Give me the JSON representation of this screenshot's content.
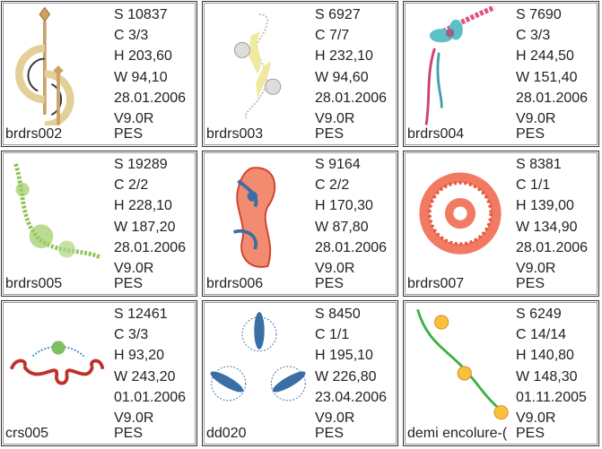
{
  "designs": [
    {
      "name": "brdrs002",
      "stitches": "S  10837",
      "colors": "C  3/3",
      "height": "H  203,60",
      "width": "W 94,10",
      "date": "28.01.2006",
      "version": "V9.0R",
      "format": "PES",
      "art": "art-deco-gold-swirl"
    },
    {
      "name": "brdrs003",
      "stitches": "S  6927",
      "colors": "C  7/7",
      "height": "H  232,10",
      "width": "W 94,60",
      "date": "28.01.2006",
      "version": "V9.0R",
      "format": "PES",
      "art": "yellow-wave-border"
    },
    {
      "name": "brdrs004",
      "stitches": "S  7690",
      "colors": "C  3/3",
      "height": "H  244,50",
      "width": "W 151,40",
      "date": "28.01.2006",
      "version": "V9.0R",
      "format": "PES",
      "art": "pink-teal-floral-spray"
    },
    {
      "name": "brdrs005",
      "stitches": "S  19289",
      "colors": "C  2/2",
      "height": "H  228,10",
      "width": "W 187,20",
      "date": "28.01.2006",
      "version": "V9.0R",
      "format": "PES",
      "art": "green-corner-vine"
    },
    {
      "name": "brdrs006",
      "stitches": "S  9164",
      "colors": "C  2/2",
      "height": "H  170,30",
      "width": "W 87,80",
      "date": "28.01.2006",
      "version": "V9.0R",
      "format": "PES",
      "art": "red-blue-paisley"
    },
    {
      "name": "brdrs007",
      "stitches": "S  8381",
      "colors": "C  1/1",
      "height": "H  139,00",
      "width": "W 134,90",
      "date": "28.01.2006",
      "version": "V9.0R",
      "format": "PES",
      "art": "red-lace-doily"
    },
    {
      "name": "crs005",
      "stitches": "S  12461",
      "colors": "C  3/3",
      "height": "H  93,20",
      "width": "W 243,20",
      "date": "01.01.2006",
      "version": "V9.0R",
      "format": "PES",
      "art": "red-scroll-border"
    },
    {
      "name": "dd020",
      "stitches": "S  8450",
      "colors": "C  1/1",
      "height": "H  195,10",
      "width": "W 226,80",
      "date": "23.04.2006",
      "version": "V9.0R",
      "format": "PES",
      "art": "blue-leaf-triad"
    },
    {
      "name": "demi encolure-(",
      "stitches": "S  6249",
      "colors": "C  14/14",
      "height": "H  140,80",
      "width": "W 148,30",
      "date": "01.11.2005",
      "version": "V9.0R",
      "format": "PES",
      "art": "yellow-roses-vine"
    }
  ]
}
